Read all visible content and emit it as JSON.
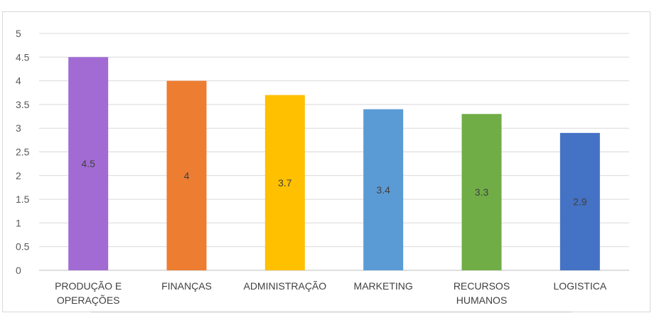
{
  "chart_data": {
    "type": "bar",
    "categories": [
      [
        "PRODUÇÃO E",
        "OPERAÇÕES"
      ],
      [
        "FINANÇAS"
      ],
      [
        "ADMINISTRAÇÃO"
      ],
      [
        "MARKETING"
      ],
      [
        "RECURSOS",
        "HUMANOS"
      ],
      [
        "LOGISTICA"
      ]
    ],
    "values": [
      4.5,
      4,
      3.7,
      3.4,
      3.3,
      2.9
    ],
    "data_labels": [
      "4.5",
      "4",
      "3.7",
      "3.4",
      "3.3",
      "2.9"
    ],
    "colors": [
      "#a26bd4",
      "#ed7d31",
      "#ffc000",
      "#5b9bd5",
      "#70ad47",
      "#4472c4"
    ],
    "ylim": [
      0,
      5
    ],
    "yticks": [
      "0",
      "0.5",
      "1",
      "1.5",
      "2",
      "2.5",
      "3",
      "3.5",
      "4",
      "4.5",
      "5"
    ],
    "title": "",
    "xlabel": "",
    "ylabel": "",
    "grid": true,
    "legend": "none"
  }
}
